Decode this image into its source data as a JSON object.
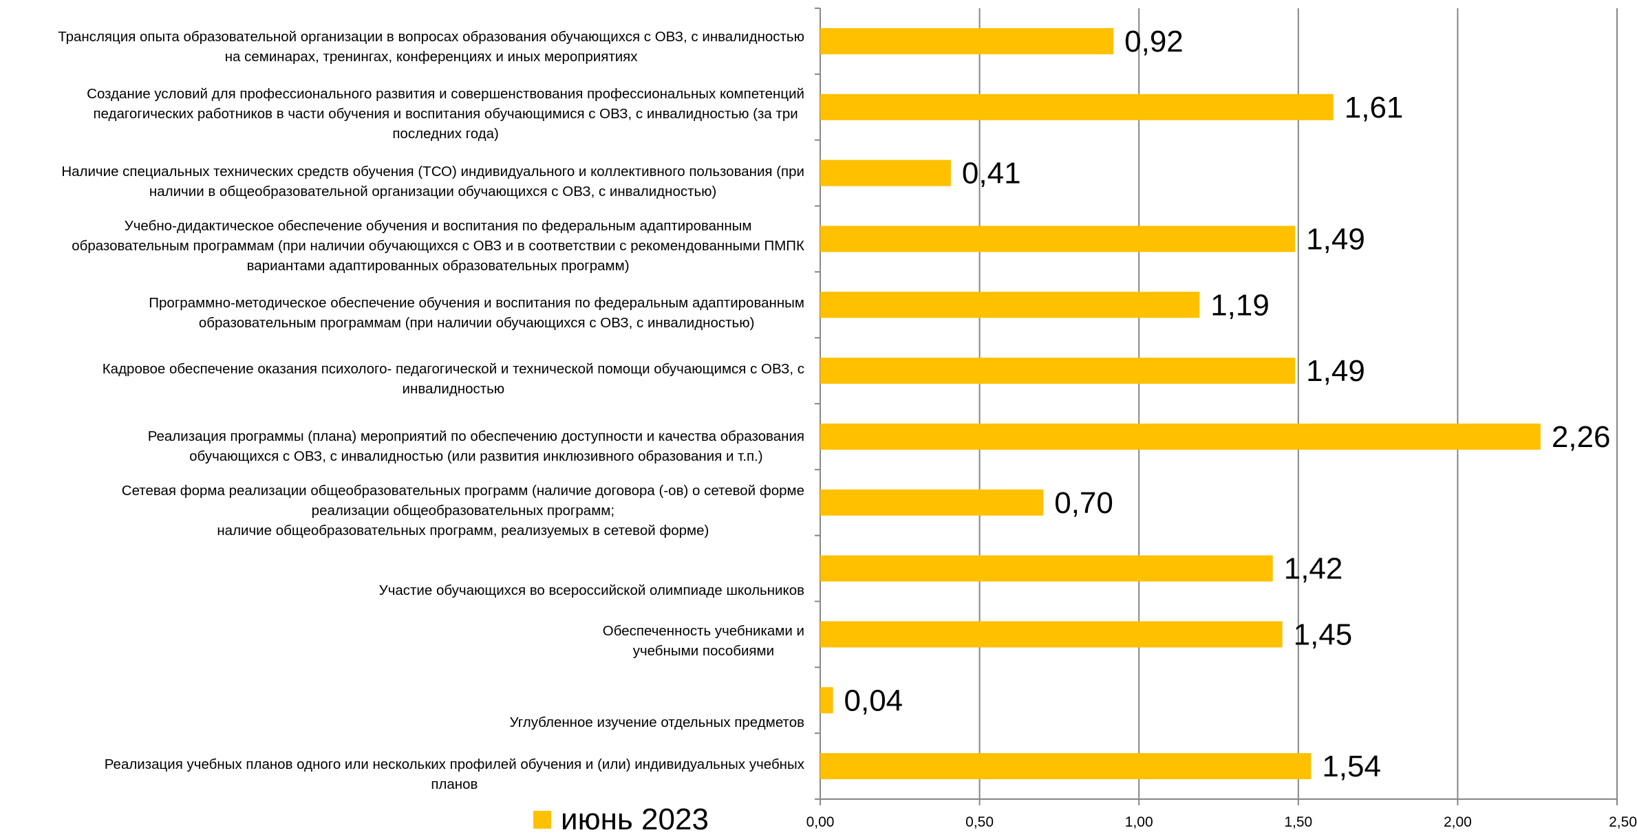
{
  "chart_data": {
    "type": "bar",
    "orientation": "horizontal",
    "categories": [
      "Трансляция опыта образовательной организации в вопросах образования обучающихся с ОВЗ, с инвалидностью\nна семинарах, тренингах, конференциях и иных мероприятиях",
      "Создание условий для профессионального развития и совершенствования профессиональных компетенций\nпедагогических работников в части обучения и воспитания обучающимися с ОВЗ, с инвалидностью (за три\nпоследних года)",
      "Наличие специальных технических средств обучения (ТСО) индивидуального и коллективного пользования (при\nналичии в общеобразовательной организации обучающихся с ОВЗ, с инвалидностью)",
      "Учебно-дидактическое обеспечение обучения и воспитания по федеральным адаптированным\nобразовательным программам (при наличии обучающихся с ОВЗ и в соответствии с рекомендованными ПМПК\nвариантами адаптированных образовательных программ)",
      "Программно-методическое обеспечение обучения и воспитания по федеральным адаптированным\nобразовательным программам (при наличии обучающихся с ОВЗ, с инвалидностью)",
      "Кадровое обеспечение оказания психолого- педагогической и технической помощи обучающимся с ОВЗ, с\nинвалидностью",
      "Реализация программы (плана) мероприятий по обеспечению доступности и качества образования\nобучающихся с ОВЗ, с инвалидностью (или развития инклюзивного образования и т.п.)",
      "Сетевая форма реализации общеобразовательных программ (наличие договора (-ов) о сетевой форме\nреализации общеобразовательных программ;\nналичие общеобразовательных программ, реализуемых в сетевой форме)",
      "Участие обучающихся во всероссийской олимпиаде школьников",
      "Обеспеченность учебниками и\nучебными пособиями",
      "Углубленное изучение отдельных предметов",
      "Реализация учебных планов одного или нескольких профилей обучения и (или) индивидуальных учебных\nпланов"
    ],
    "series": [
      {
        "name": "июнь 2023",
        "color": "#FFC000",
        "values": [
          0.92,
          1.61,
          0.41,
          1.49,
          1.19,
          1.49,
          2.26,
          0.7,
          1.42,
          1.45,
          0.04,
          1.54
        ],
        "labels": [
          "0,92",
          "1,61",
          "0,41",
          "1,49",
          "1,19",
          "1,49",
          "2,26",
          "0,70",
          "1,42",
          "1,45",
          "0,04",
          "1,54"
        ]
      }
    ],
    "x_ticks": [
      0,
      0.5,
      1.0,
      1.5,
      2.0,
      2.5
    ],
    "x_tick_labels": [
      "0,00",
      "0,50",
      "1,00",
      "1,50",
      "2,00",
      "2,50"
    ],
    "xlim": [
      0,
      2.5
    ],
    "gridlines": "vertical",
    "legend": "bottom"
  }
}
